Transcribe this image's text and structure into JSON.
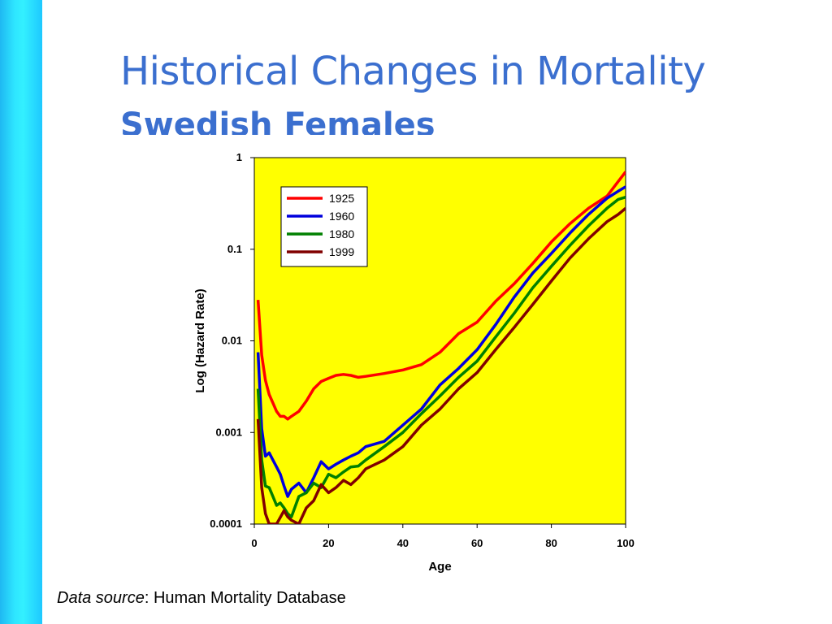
{
  "slide": {
    "title": "Historical Changes in Mortality",
    "subtitle": "Swedish Females",
    "source_label": "Data source",
    "source_text": ": Human Mortality Database"
  },
  "colors": {
    "sidebar": "#22d4ff",
    "title": "#3b6fcf",
    "plot_background": "#ffff00"
  },
  "chart_data": {
    "type": "line",
    "xlabel": "Age",
    "ylabel": "Log (Hazard Rate)",
    "xlim": [
      0,
      100
    ],
    "ylim": [
      0.0001,
      1
    ],
    "yscale": "log",
    "x_ticks": [
      0,
      20,
      40,
      60,
      80,
      100
    ],
    "y_ticks": [
      {
        "value": 1,
        "label": "1"
      },
      {
        "value": 0.1,
        "label": "0.1"
      },
      {
        "value": 0.01,
        "label": "0.01"
      },
      {
        "value": 0.001,
        "label": "0.001"
      },
      {
        "value": 0.0001,
        "label": "0.0001"
      }
    ],
    "grid": false,
    "legend_position": "top-left",
    "series": [
      {
        "name": "1925",
        "color": "#ff0000",
        "x": [
          1,
          2,
          3,
          4,
          5,
          6,
          7,
          8,
          9,
          10,
          12,
          14,
          16,
          18,
          20,
          22,
          24,
          26,
          28,
          30,
          35,
          40,
          45,
          50,
          55,
          60,
          65,
          70,
          75,
          80,
          85,
          90,
          95,
          98,
          100
        ],
        "y": [
          0.028,
          0.007,
          0.0037,
          0.0026,
          0.0021,
          0.0017,
          0.0015,
          0.0015,
          0.0014,
          0.0015,
          0.0017,
          0.0022,
          0.003,
          0.0036,
          0.0039,
          0.0042,
          0.0043,
          0.0042,
          0.004,
          0.0041,
          0.0044,
          0.0048,
          0.0055,
          0.0075,
          0.012,
          0.016,
          0.027,
          0.042,
          0.07,
          0.12,
          0.19,
          0.28,
          0.38,
          0.55,
          0.7
        ]
      },
      {
        "name": "1960",
        "color": "#0000dd",
        "x": [
          1,
          2,
          3,
          4,
          5,
          6,
          7,
          8,
          9,
          10,
          12,
          14,
          16,
          18,
          20,
          22,
          24,
          26,
          28,
          30,
          35,
          40,
          45,
          50,
          55,
          60,
          65,
          70,
          75,
          80,
          85,
          90,
          95,
          98,
          100
        ],
        "y": [
          0.0075,
          0.0011,
          0.00055,
          0.0006,
          0.0005,
          0.00042,
          0.00035,
          0.00026,
          0.0002,
          0.00024,
          0.00028,
          0.00022,
          0.00032,
          0.00048,
          0.0004,
          0.00045,
          0.0005,
          0.00055,
          0.0006,
          0.0007,
          0.0008,
          0.0012,
          0.0018,
          0.0033,
          0.005,
          0.008,
          0.015,
          0.03,
          0.055,
          0.09,
          0.15,
          0.24,
          0.36,
          0.43,
          0.48
        ]
      },
      {
        "name": "1980",
        "color": "#008000",
        "x": [
          1,
          2,
          3,
          4,
          5,
          6,
          7,
          8,
          9,
          10,
          12,
          14,
          16,
          18,
          20,
          22,
          24,
          26,
          28,
          30,
          35,
          40,
          45,
          50,
          55,
          60,
          65,
          70,
          75,
          80,
          85,
          90,
          95,
          98,
          100
        ],
        "y": [
          0.003,
          0.0005,
          0.00026,
          0.00025,
          0.0002,
          0.00016,
          0.00017,
          0.00015,
          0.00013,
          0.00012,
          0.0002,
          0.00022,
          0.00028,
          0.00025,
          0.00035,
          0.00032,
          0.00037,
          0.00042,
          0.00043,
          0.0005,
          0.0007,
          0.001,
          0.0016,
          0.0025,
          0.004,
          0.006,
          0.011,
          0.02,
          0.038,
          0.065,
          0.11,
          0.18,
          0.28,
          0.35,
          0.37
        ]
      },
      {
        "name": "1999",
        "color": "#800000",
        "x": [
          1,
          2,
          3,
          4,
          6,
          8,
          9,
          10,
          12,
          14,
          16,
          18,
          20,
          22,
          24,
          26,
          28,
          30,
          35,
          40,
          45,
          50,
          55,
          60,
          65,
          70,
          75,
          80,
          85,
          90,
          95,
          98,
          100
        ],
        "y": [
          0.0014,
          0.00025,
          0.00013,
          0.0001,
          0.0001,
          0.00014,
          0.00012,
          0.00011,
          0.0001,
          0.00015,
          0.00018,
          0.00027,
          0.00022,
          0.00025,
          0.0003,
          0.00027,
          0.00032,
          0.0004,
          0.0005,
          0.0007,
          0.0012,
          0.0018,
          0.003,
          0.0045,
          0.008,
          0.014,
          0.025,
          0.045,
          0.08,
          0.13,
          0.2,
          0.24,
          0.28
        ]
      }
    ]
  }
}
